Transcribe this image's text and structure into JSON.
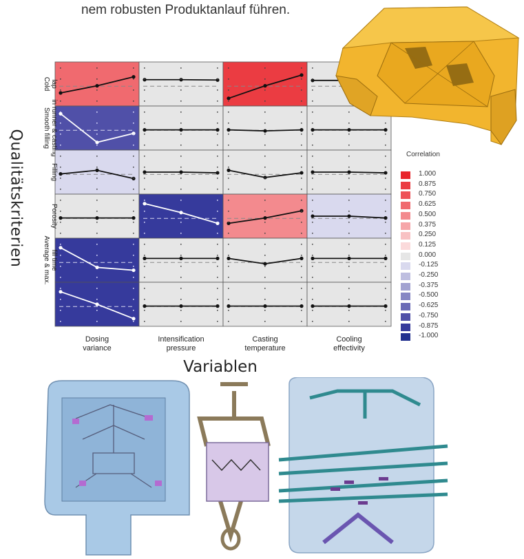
{
  "intro_text": "nem robusten Produktanlauf führen.",
  "y_axis_title": "Qualitätskriterien",
  "x_axis_title": "Variablen",
  "legend_title": "Correlation",
  "chart_data": {
    "type": "heatmap",
    "rows": [
      "Cold lap",
      "Smooth filling in runner & casting",
      "Filling",
      "Porosity",
      "Average & max. fill time",
      "fill time"
    ],
    "row_labels_shown": [
      "Cold\nlap",
      "Smooth filling\nin runner & casting",
      "Filling",
      "Porosity",
      "Average & max.\nfill time",
      ""
    ],
    "columns": [
      "Dosing variance",
      "Intensification pressure",
      "Casting temperature",
      "Cooling effectivity"
    ],
    "column_labels_shown": [
      [
        "Dosing",
        "variance"
      ],
      [
        "Intensification",
        "pressure"
      ],
      [
        "Casting",
        "temperature"
      ],
      [
        "Cooling",
        "effectivity"
      ]
    ],
    "correlation": [
      [
        0.625,
        0.0,
        0.875,
        0.0
      ],
      [
        -0.75,
        0.0,
        0.0,
        0.0
      ],
      [
        -0.125,
        0.0,
        0.0,
        0.0
      ],
      [
        0.0,
        -0.875,
        0.5,
        -0.125
      ],
      [
        -0.875,
        0.0,
        0.0,
        0.0
      ],
      [
        -0.875,
        0.0,
        0.0,
        0.0
      ]
    ],
    "trend": [
      [
        [
          0.25,
          0.45,
          0.7
        ],
        [
          0.62,
          0.62,
          0.61
        ],
        [
          0.1,
          0.45,
          0.75
        ],
        [
          0.6,
          0.6,
          0.6
        ]
      ],
      [
        [
          0.9,
          0.1,
          0.35
        ],
        [
          0.45,
          0.45,
          0.45
        ],
        [
          0.45,
          0.42,
          0.45
        ],
        [
          0.45,
          0.45,
          0.45
        ]
      ],
      [
        [
          0.45,
          0.55,
          0.32
        ],
        [
          0.5,
          0.5,
          0.48
        ],
        [
          0.55,
          0.35,
          0.48
        ],
        [
          0.5,
          0.5,
          0.48
        ]
      ],
      [
        [
          0.45,
          0.45,
          0.45
        ],
        [
          0.85,
          0.6,
          0.3
        ],
        [
          0.3,
          0.45,
          0.65
        ],
        [
          0.5,
          0.5,
          0.45
        ]
      ],
      [
        [
          0.85,
          0.3,
          0.22
        ],
        [
          0.55,
          0.55,
          0.55
        ],
        [
          0.55,
          0.4,
          0.55
        ],
        [
          0.55,
          0.55,
          0.55
        ]
      ],
      [
        [
          0.85,
          0.5,
          0.1
        ],
        [
          0.45,
          0.45,
          0.45
        ],
        [
          0.45,
          0.45,
          0.45
        ],
        [
          0.45,
          0.45,
          0.45
        ]
      ]
    ],
    "legend": {
      "values": [
        "1.000",
        "0.875",
        "0.750",
        "0.625",
        "0.500",
        "0.375",
        "0.250",
        "0.125",
        "0.000",
        "-0.125",
        "-0.250",
        "-0.375",
        "-0.500",
        "-0.625",
        "-0.750",
        "-0.875",
        "-1.000"
      ],
      "colors": [
        "#e8242b",
        "#eb3c42",
        "#ee5258",
        "#f06a6f",
        "#f38a8e",
        "#f6a6a9",
        "#f8c1c3",
        "#fbdadb",
        "#e6e6e6",
        "#d9d9ee",
        "#bebee0",
        "#a2a2d1",
        "#8787c4",
        "#6b6bb6",
        "#5050a8",
        "#363a9c",
        "#22308f"
      ]
    }
  },
  "colors": {
    "block_fill": "#f2b52e",
    "mold_blue": "#a9c9e6",
    "frame_tan": "#c5b08f"
  }
}
